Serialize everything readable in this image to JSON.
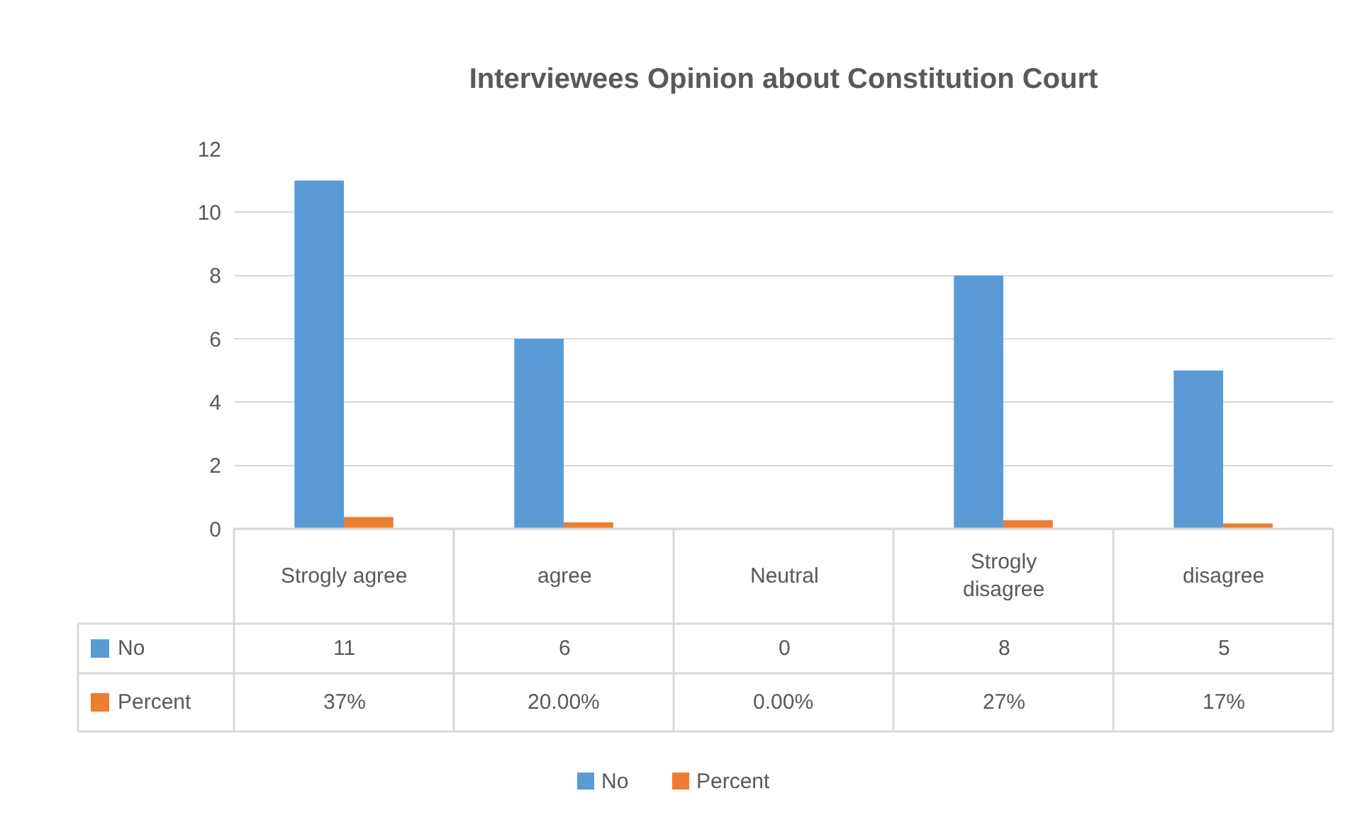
{
  "chart_data": {
    "type": "bar",
    "title": "Interviewees Opinion about Constitution Court",
    "categories": [
      "Strogly agree",
      "agree",
      "Neutral",
      "Strogly disagree",
      "disagree"
    ],
    "series": [
      {
        "name": "No",
        "color": "#5b9bd5",
        "values": [
          11,
          6,
          0,
          8,
          5
        ],
        "value_labels": [
          "11",
          "6",
          "0",
          "8",
          "5"
        ]
      },
      {
        "name": "Percent",
        "color": "#ed7d31",
        "values": [
          0.37,
          0.2,
          0,
          0.27,
          0.17
        ],
        "value_labels": [
          "37%",
          "20.00%",
          "0.00%",
          "27%",
          "17%"
        ]
      }
    ],
    "ylim": [
      0,
      12
    ],
    "yticks": [
      0,
      2,
      4,
      6,
      8,
      10,
      12
    ],
    "grid": "y",
    "legend": "bottom",
    "tick_labels": "y"
  }
}
